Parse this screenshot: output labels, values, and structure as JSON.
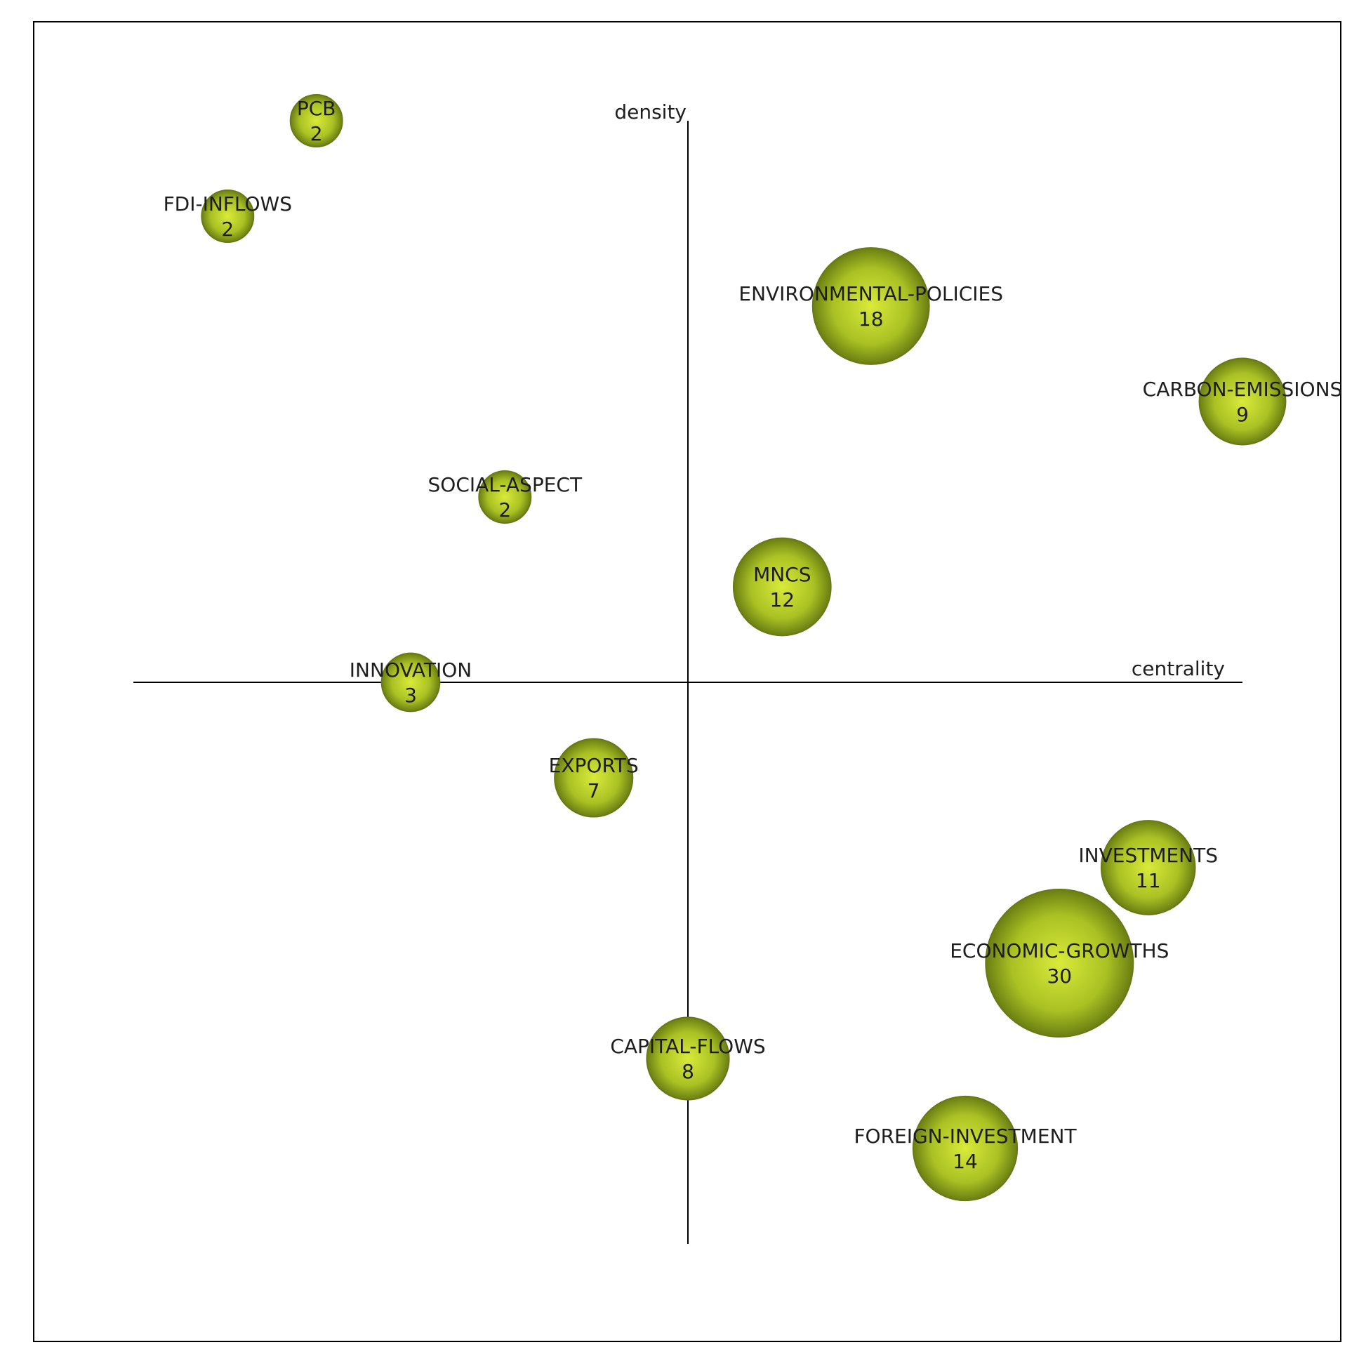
{
  "colors": {
    "bubble_highlight": "#d9ea3a",
    "bubble_mid": "#a9c123",
    "bubble_edge": "#6a7e12",
    "axis": "#000000",
    "text": "#1e1e1e"
  },
  "chart_data": {
    "type": "scatter",
    "subtype": "bubble strategic diagram",
    "xlabel": "centrality",
    "ylabel": "density",
    "xlim": [
      -1,
      1
    ],
    "ylim": [
      -1,
      1
    ],
    "grid": false,
    "legend": "none",
    "size_field": "documents",
    "points": [
      {
        "label": "PCB",
        "value": "2",
        "x": -0.67,
        "y": 1.0
      },
      {
        "label": "FDI-INFLOWS",
        "value": "2",
        "x": -0.83,
        "y": 0.83
      },
      {
        "label": "ENVIRONMENTAL-POLICIES",
        "value": "18",
        "x": 0.33,
        "y": 0.67
      },
      {
        "label": "CARBON-EMISSIONS",
        "value": "9",
        "x": 1.0,
        "y": 0.5
      },
      {
        "label": "SOCIAL-ASPECT",
        "value": "2",
        "x": -0.33,
        "y": 0.33
      },
      {
        "label": "MNCS",
        "value": "12",
        "x": 0.17,
        "y": 0.17
      },
      {
        "label": "INNOVATION",
        "value": "3",
        "x": -0.5,
        "y": 0.0
      },
      {
        "label": "EXPORTS",
        "value": "7",
        "x": -0.17,
        "y": -0.17
      },
      {
        "label": "INVESTMENTS",
        "value": "11",
        "x": 0.83,
        "y": -0.33
      },
      {
        "label": "ECONOMIC-GROWTHS",
        "value": "30",
        "x": 0.67,
        "y": -0.5
      },
      {
        "label": "CAPITAL-FLOWS",
        "value": "8",
        "x": 0.0,
        "y": -0.67
      },
      {
        "label": "FOREIGN-INVESTMENT",
        "value": "14",
        "x": 0.5,
        "y": -0.83
      }
    ]
  }
}
